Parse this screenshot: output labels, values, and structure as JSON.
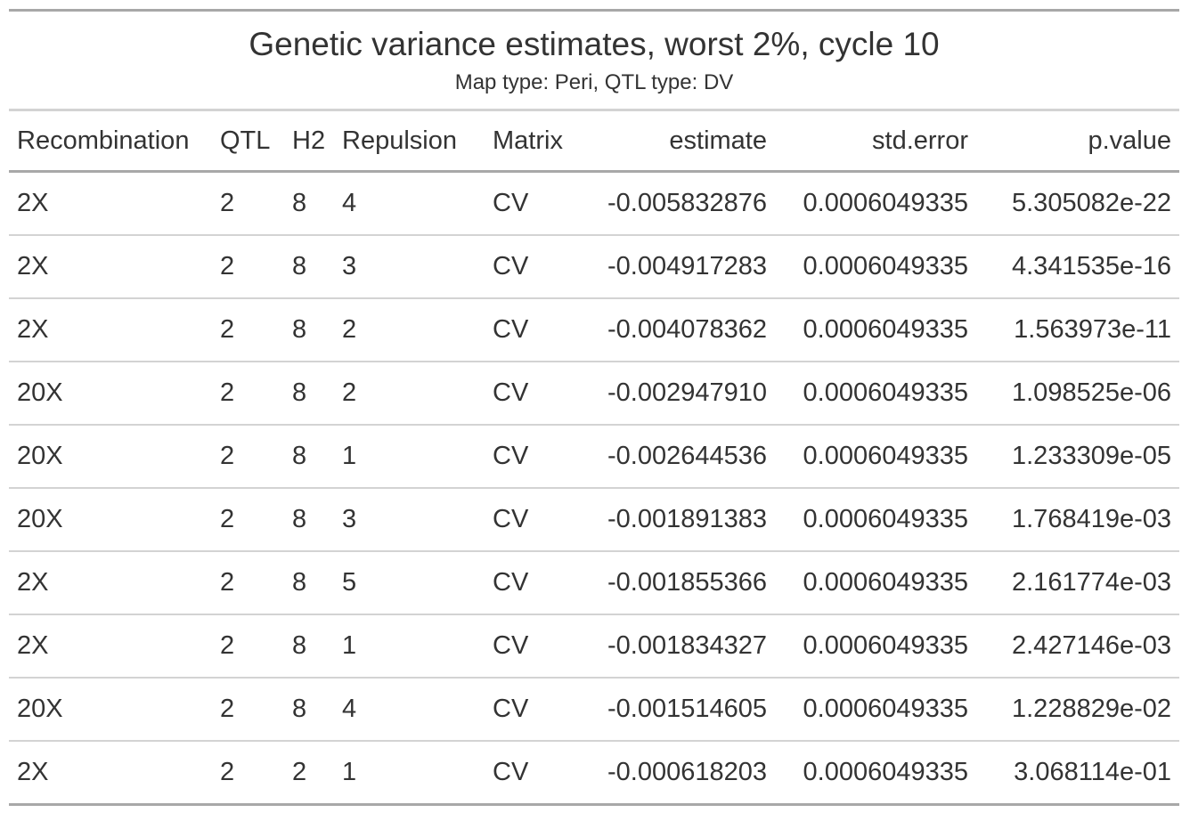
{
  "title": "Genetic variance estimates, worst 2%, cycle 10",
  "subtitle": "Map type: Peri, QTL type: DV",
  "columns": [
    "Recombination",
    "QTL",
    "H2",
    "Repulsion",
    "Matrix",
    "estimate",
    "std.error",
    "p.value"
  ],
  "rows": [
    [
      "2X",
      "2",
      "8",
      "4",
      "CV",
      "-0.005832876",
      "0.0006049335",
      "5.305082e-22"
    ],
    [
      "2X",
      "2",
      "8",
      "3",
      "CV",
      "-0.004917283",
      "0.0006049335",
      "4.341535e-16"
    ],
    [
      "2X",
      "2",
      "8",
      "2",
      "CV",
      "-0.004078362",
      "0.0006049335",
      "1.563973e-11"
    ],
    [
      "20X",
      "2",
      "8",
      "2",
      "CV",
      "-0.002947910",
      "0.0006049335",
      "1.098525e-06"
    ],
    [
      "20X",
      "2",
      "8",
      "1",
      "CV",
      "-0.002644536",
      "0.0006049335",
      "1.233309e-05"
    ],
    [
      "20X",
      "2",
      "8",
      "3",
      "CV",
      "-0.001891383",
      "0.0006049335",
      "1.768419e-03"
    ],
    [
      "2X",
      "2",
      "8",
      "5",
      "CV",
      "-0.001855366",
      "0.0006049335",
      "2.161774e-03"
    ],
    [
      "2X",
      "2",
      "8",
      "1",
      "CV",
      "-0.001834327",
      "0.0006049335",
      "2.427146e-03"
    ],
    [
      "20X",
      "2",
      "8",
      "4",
      "CV",
      "-0.001514605",
      "0.0006049335",
      "1.228829e-02"
    ],
    [
      "2X",
      "2",
      "2",
      "1",
      "CV",
      "-0.000618203",
      "0.0006049335",
      "3.068114e-01"
    ]
  ],
  "colors": {
    "text": "#333333",
    "strong_rule": "#a8a8a8",
    "light_rule": "#d3d3d3"
  }
}
